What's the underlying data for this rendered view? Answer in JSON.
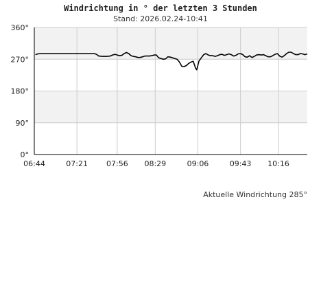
{
  "header": {
    "title": "Windrichtung in ° der letzten 3 Stunden",
    "subtitle": "Stand: 2026.02.24-10:41"
  },
  "footer": {
    "current_reading": "Aktuelle Windrichtung 285°"
  },
  "colors": {
    "line": "#000000",
    "band": "#f2f2f2",
    "grid": "#cccccc",
    "axis": "#000000"
  },
  "chart_data": {
    "type": "line",
    "title": "Windrichtung in ° der letzten 3 Stunden",
    "subtitle": "Stand: 2026.02.24-10:41",
    "xlabel": "",
    "ylabel": "",
    "ylim": [
      0,
      360
    ],
    "xlim": [
      "06:44",
      "10:41"
    ],
    "y_ticks": [
      0,
      90,
      180,
      270,
      360
    ],
    "y_tick_labels": [
      "0°",
      "90°",
      "180°",
      "270°",
      "360°"
    ],
    "x_ticks": [
      "06:44",
      "07:21",
      "07:56",
      "08:29",
      "09:06",
      "09:43",
      "10:16"
    ],
    "grid": true,
    "shaded_bands": [
      [
        90,
        180
      ],
      [
        270,
        360
      ]
    ],
    "series": [
      {
        "x": [
          "06:45",
          "06:47",
          "06:50",
          "06:55",
          "07:00",
          "07:05",
          "07:10",
          "07:15",
          "07:20",
          "07:25",
          "07:30",
          "07:35",
          "07:36",
          "07:38",
          "07:40",
          "07:43",
          "07:45",
          "07:47",
          "07:50",
          "07:52",
          "07:54",
          "07:56",
          "07:58",
          "08:00",
          "08:02",
          "08:04",
          "08:06",
          "08:08",
          "08:10",
          "08:12",
          "08:14",
          "08:16",
          "08:18",
          "08:20",
          "08:22",
          "08:24",
          "08:26",
          "08:28",
          "08:30",
          "08:32",
          "08:34",
          "08:36",
          "08:38",
          "08:40",
          "08:42",
          "08:44",
          "08:46",
          "08:48",
          "08:50",
          "08:52",
          "08:54",
          "08:56",
          "08:58",
          "09:00",
          "09:02",
          "09:04",
          "09:05",
          "09:07",
          "09:09",
          "09:11",
          "09:13",
          "09:15",
          "09:17",
          "09:19",
          "09:21",
          "09:23",
          "09:25",
          "09:27",
          "09:29",
          "09:31",
          "09:33",
          "09:35",
          "09:37",
          "09:39",
          "09:41",
          "09:43",
          "09:45",
          "09:47",
          "09:49",
          "09:51",
          "09:53",
          "09:55",
          "09:57",
          "09:59",
          "10:01",
          "10:03",
          "10:05",
          "10:07",
          "10:09",
          "10:11",
          "10:13",
          "10:15",
          "10:17",
          "10:19",
          "10:21",
          "10:23",
          "10:25",
          "10:27",
          "10:29",
          "10:31",
          "10:33",
          "10:35",
          "10:37",
          "10:39",
          "10:41"
        ],
        "values": [
          283,
          285,
          286,
          286,
          286,
          286,
          286,
          286,
          286,
          286,
          286,
          286,
          286,
          284,
          279,
          278,
          278,
          278,
          279,
          282,
          284,
          282,
          280,
          281,
          286,
          289,
          286,
          280,
          278,
          277,
          275,
          275,
          277,
          279,
          279,
          279,
          280,
          282,
          282,
          274,
          272,
          270,
          271,
          277,
          276,
          274,
          272,
          270,
          262,
          250,
          249,
          252,
          258,
          262,
          264,
          245,
          240,
          265,
          274,
          283,
          286,
          282,
          280,
          280,
          278,
          280,
          283,
          284,
          281,
          283,
          285,
          283,
          279,
          281,
          285,
          286,
          283,
          277,
          276,
          280,
          275,
          278,
          282,
          283,
          282,
          283,
          280,
          277,
          277,
          280,
          284,
          286,
          279,
          276,
          280,
          286,
          290,
          290,
          286,
          283,
          283,
          286,
          285,
          283,
          285
        ]
      }
    ]
  }
}
